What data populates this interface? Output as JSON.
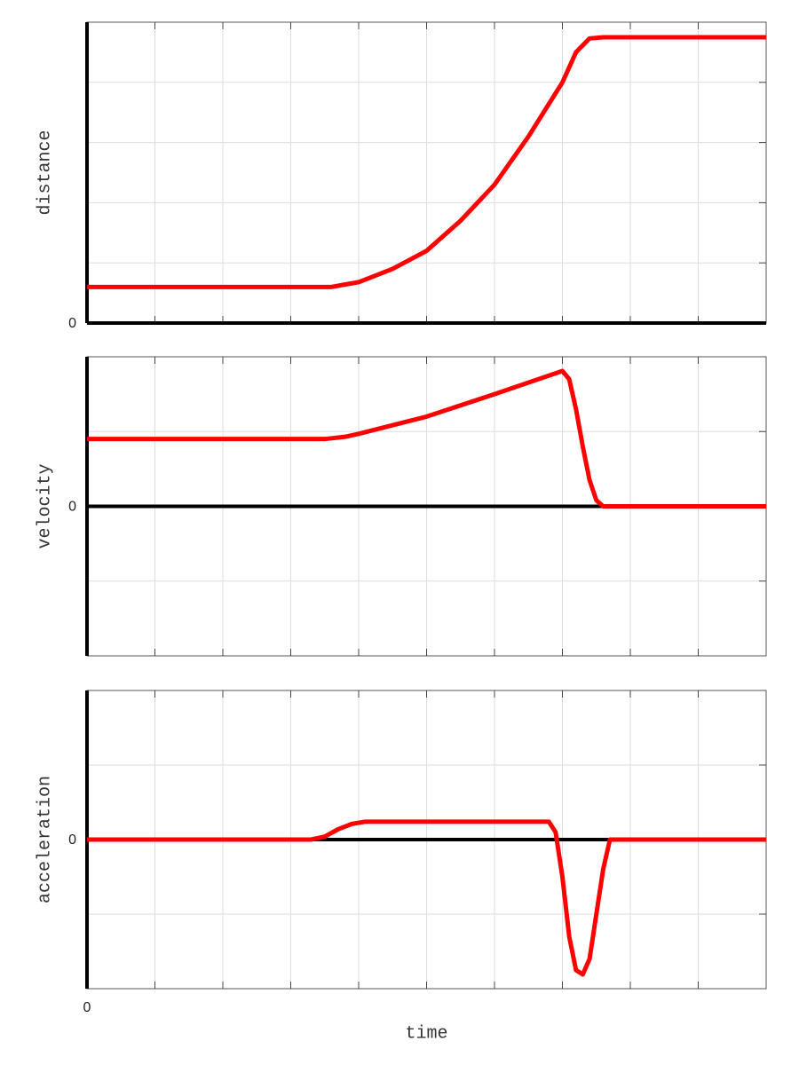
{
  "chart_data": [
    {
      "type": "line",
      "ylabel": "distance",
      "x": [
        0,
        1,
        2,
        3,
        3.6,
        4.0,
        4.5,
        5,
        5.5,
        6,
        6.5,
        7,
        7.2,
        7.4,
        7.6,
        8,
        9,
        10
      ],
      "series": [
        {
          "color": "#ff0000",
          "values": [
            0.6,
            0.6,
            0.6,
            0.6,
            0.6,
            0.68,
            0.9,
            1.2,
            1.7,
            2.3,
            3.1,
            4.0,
            4.5,
            4.73,
            4.75,
            4.75,
            4.75,
            4.75
          ]
        }
      ],
      "xlim": [
        0,
        10
      ],
      "ylim": [
        0,
        5
      ],
      "yticks": [
        0
      ],
      "xgrid": [
        1,
        2,
        3,
        4,
        5,
        6,
        7,
        8,
        9
      ],
      "ygrid": [
        1,
        2,
        3,
        4
      ],
      "zero_line": true
    },
    {
      "type": "line",
      "ylabel": "velocity",
      "x": [
        0,
        1,
        2,
        3,
        3.5,
        3.8,
        4.0,
        5,
        6,
        7,
        7.1,
        7.2,
        7.3,
        7.4,
        7.5,
        7.6,
        8,
        9,
        10
      ],
      "series": [
        {
          "color": "#ff0000",
          "values": [
            0.9,
            0.9,
            0.9,
            0.9,
            0.9,
            0.93,
            0.97,
            1.2,
            1.5,
            1.81,
            1.7,
            1.3,
            0.8,
            0.35,
            0.08,
            0,
            0,
            0,
            0
          ]
        }
      ],
      "xlim": [
        0,
        10
      ],
      "ylim": [
        -2,
        2
      ],
      "yticks": [
        0
      ],
      "xgrid": [
        1,
        2,
        3,
        4,
        5,
        6,
        7,
        8,
        9
      ],
      "ygrid": [
        -1,
        1
      ],
      "zero_line": true
    },
    {
      "type": "line",
      "ylabel": "acceleration",
      "xlabel": "time",
      "x": [
        0,
        1,
        2,
        3,
        3.3,
        3.5,
        3.7,
        3.9,
        4.1,
        5,
        6,
        6.8,
        6.9,
        7.0,
        7.1,
        7.2,
        7.3,
        7.4,
        7.5,
        7.6,
        7.7,
        8,
        9,
        10
      ],
      "series": [
        {
          "color": "#ff0000",
          "values": [
            0,
            0,
            0,
            0,
            0,
            0.04,
            0.14,
            0.21,
            0.24,
            0.24,
            0.24,
            0.24,
            0.1,
            -0.5,
            -1.3,
            -1.75,
            -1.81,
            -1.6,
            -1.0,
            -0.4,
            0,
            0,
            0,
            0
          ]
        }
      ],
      "xlim": [
        0,
        10
      ],
      "ylim": [
        -2,
        2
      ],
      "yticks": [
        0
      ],
      "xticks": [
        0
      ],
      "xgrid": [
        1,
        2,
        3,
        4,
        5,
        6,
        7,
        8,
        9
      ],
      "ygrid": [
        -1,
        1
      ],
      "zero_line": true
    }
  ]
}
